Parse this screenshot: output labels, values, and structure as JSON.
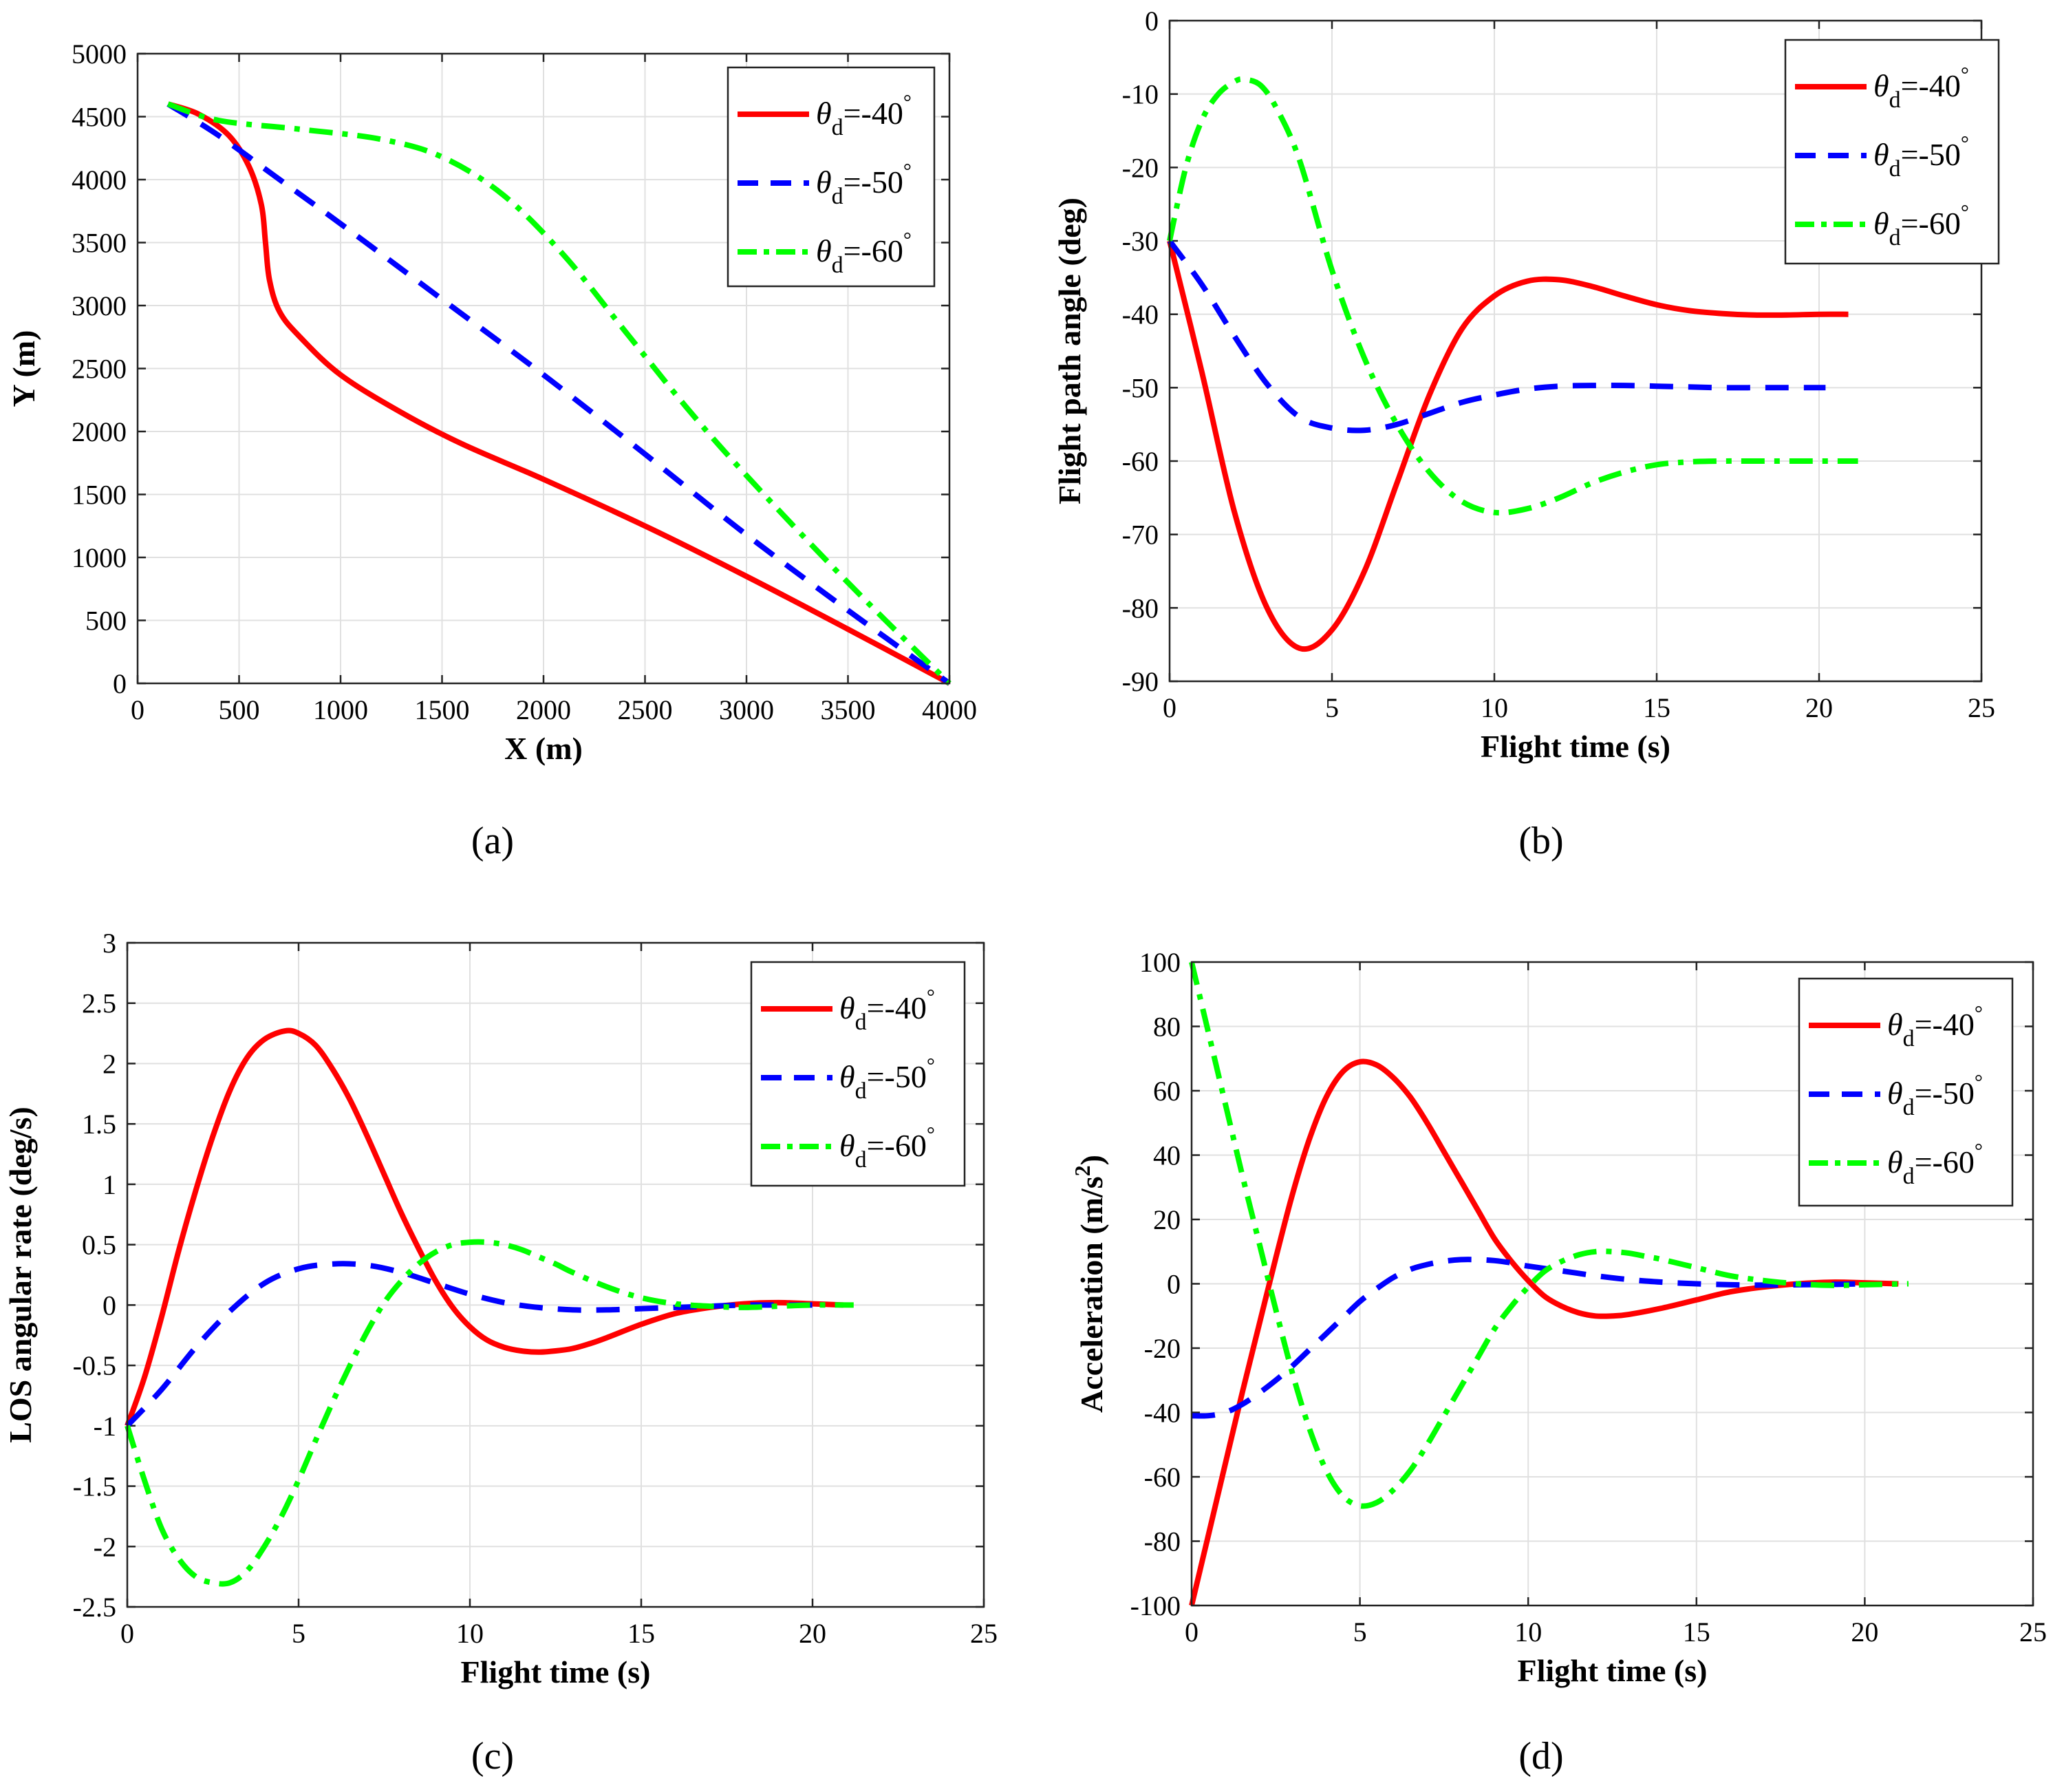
{
  "chart_data": [
    {
      "type": "line",
      "id": "a",
      "caption": "(a)",
      "xlabel": "X (m)",
      "ylabel": "Y (m)",
      "xlim": [
        0,
        4000
      ],
      "ylim": [
        0,
        5000
      ],
      "xticks": [
        0,
        500,
        1000,
        1500,
        2000,
        2500,
        3000,
        3500,
        4000
      ],
      "yticks": [
        0,
        500,
        1000,
        1500,
        2000,
        2500,
        3000,
        3500,
        4000,
        4500,
        5000
      ],
      "grid": true,
      "legend": "top-right",
      "series": [
        {
          "name": "θd=-40°",
          "color": "#ff0000",
          "style": "solid",
          "x": [
            150,
            300,
            450,
            550,
            610,
            630,
            650,
            700,
            800,
            1000,
            1300,
            1600,
            2000,
            2500,
            3000,
            3500,
            4000
          ],
          "y": [
            4600,
            4520,
            4350,
            4100,
            3800,
            3500,
            3200,
            2950,
            2750,
            2450,
            2150,
            1900,
            1620,
            1250,
            850,
            430,
            0
          ]
        },
        {
          "name": "θd=-50°",
          "color": "#0000ff",
          "style": "dashed",
          "x": [
            150,
            400,
            700,
            1000,
            1500,
            2000,
            2500,
            3000,
            3500,
            4000
          ],
          "y": [
            4600,
            4350,
            4000,
            3650,
            3050,
            2450,
            1820,
            1180,
            580,
            0
          ]
        },
        {
          "name": "θd=-60°",
          "color": "#00ff00",
          "style": "dashdot",
          "x": [
            150,
            400,
            800,
            1200,
            1500,
            1800,
            2100,
            2400,
            2700,
            3000,
            3500,
            4000
          ],
          "y": [
            4600,
            4470,
            4400,
            4320,
            4180,
            3880,
            3400,
            2800,
            2200,
            1650,
            800,
            0
          ]
        }
      ],
      "legend_entries": [
        {
          "symbol": "θ",
          "sub": "d",
          "value": "=-40",
          "sup": "°"
        },
        {
          "symbol": "θ",
          "sub": "d",
          "value": "=-50",
          "sup": "°"
        },
        {
          "symbol": "θ",
          "sub": "d",
          "value": "=-60",
          "sup": "°"
        }
      ]
    },
    {
      "type": "line",
      "id": "b",
      "caption": "(b)",
      "xlabel": "Flight time (s)",
      "ylabel": "Flight path angle (deg)",
      "xlim": [
        0,
        25
      ],
      "ylim": [
        -90,
        0
      ],
      "xticks": [
        0,
        5,
        10,
        15,
        20,
        25
      ],
      "yticks": [
        -90,
        -80,
        -70,
        -60,
        -50,
        -40,
        -30,
        -20,
        -10,
        0
      ],
      "grid": true,
      "legend": "top-right",
      "series": [
        {
          "name": "θd=-40°",
          "color": "#ff0000",
          "style": "solid",
          "x": [
            0,
            1,
            2,
            3,
            4,
            5,
            6,
            7,
            8,
            9,
            10,
            11,
            12,
            13,
            14,
            15,
            16,
            17,
            18,
            19,
            20,
            20.9
          ],
          "y": [
            -30,
            -48,
            -67,
            -80,
            -85.5,
            -83,
            -75,
            -63,
            -51,
            -42,
            -37.5,
            -35.5,
            -35.3,
            -36.2,
            -37.5,
            -38.7,
            -39.5,
            -39.9,
            -40.1,
            -40.1,
            -40,
            -40
          ]
        },
        {
          "name": "θd=-50°",
          "color": "#0000ff",
          "style": "dashed",
          "x": [
            0,
            1,
            2,
            3,
            4,
            5,
            6,
            7,
            8,
            9,
            10,
            11,
            12,
            13,
            14,
            15,
            16,
            17,
            18,
            19,
            20.2
          ],
          "y": [
            -30,
            -36,
            -43,
            -49.5,
            -54,
            -55.5,
            -55.8,
            -55,
            -53.5,
            -52,
            -51,
            -50.2,
            -49.8,
            -49.7,
            -49.7,
            -49.8,
            -49.9,
            -50,
            -50,
            -50,
            -50
          ]
        },
        {
          "name": "θd=-60°",
          "color": "#00ff00",
          "style": "dashdot",
          "x": [
            0,
            0.5,
            1,
            1.5,
            2,
            2.3,
            2.8,
            3.3,
            4,
            5,
            6,
            7,
            8,
            9,
            10,
            11,
            12,
            13,
            14,
            15,
            16,
            17,
            18,
            19,
            20,
            21.2
          ],
          "y": [
            -30,
            -20,
            -13.5,
            -10,
            -8.3,
            -8,
            -8.8,
            -12,
            -19,
            -34,
            -46,
            -55,
            -61.5,
            -65.5,
            -67,
            -66.5,
            -65,
            -63,
            -61.5,
            -60.5,
            -60.1,
            -60,
            -60,
            -60,
            -60,
            -60
          ]
        }
      ],
      "legend_entries": [
        {
          "symbol": "θ",
          "sub": "d",
          "value": "=-40",
          "sup": "°"
        },
        {
          "symbol": "θ",
          "sub": "d",
          "value": "=-50",
          "sup": "°"
        },
        {
          "symbol": "θ",
          "sub": "d",
          "value": "=-60",
          "sup": "°"
        }
      ]
    },
    {
      "type": "line",
      "id": "c",
      "caption": "(c)",
      "xlabel": "Flight time (s)",
      "ylabel": "LOS angular rate (deg/s)",
      "xlim": [
        0,
        25
      ],
      "ylim": [
        -2.5,
        3
      ],
      "xticks": [
        0,
        5,
        10,
        15,
        20,
        25
      ],
      "yticks": [
        -2.5,
        -2,
        -1.5,
        -1,
        -0.5,
        0,
        0.5,
        1,
        1.5,
        2,
        2.5,
        3
      ],
      "yticklabels": [
        "-2.5",
        "-2",
        "-1.5",
        "-1",
        "-0.5",
        "0",
        "0.5",
        "1",
        "1.5",
        "2",
        "2.5",
        "3"
      ],
      "grid": true,
      "legend": "top-right",
      "series": [
        {
          "name": "θd=-40°",
          "color": "#ff0000",
          "style": "solid",
          "x": [
            0,
            0.5,
            1,
            1.5,
            2,
            2.5,
            3,
            3.5,
            4,
            4.6,
            5,
            5.5,
            6,
            6.5,
            7,
            7.5,
            8,
            8.5,
            9,
            9.5,
            10,
            10.5,
            11,
            11.5,
            12,
            12.5,
            13,
            13.5,
            14,
            15,
            16,
            17,
            18,
            19,
            20,
            20.9
          ],
          "y": [
            -1,
            -0.6,
            -0.1,
            0.45,
            0.95,
            1.4,
            1.78,
            2.05,
            2.2,
            2.27,
            2.25,
            2.15,
            1.95,
            1.7,
            1.4,
            1.08,
            0.76,
            0.47,
            0.2,
            -0.02,
            -0.18,
            -0.29,
            -0.35,
            -0.38,
            -0.39,
            -0.38,
            -0.36,
            -0.32,
            -0.27,
            -0.16,
            -0.07,
            -0.02,
            0.01,
            0.02,
            0.01,
            0
          ]
        },
        {
          "name": "θd=-50°",
          "color": "#0000ff",
          "style": "dashed",
          "x": [
            0,
            1,
            2,
            3,
            4,
            5,
            6,
            7,
            8,
            9,
            10,
            11,
            12,
            13,
            14,
            15,
            16,
            17,
            18,
            19,
            20
          ],
          "y": [
            -1,
            -0.7,
            -0.35,
            -0.05,
            0.18,
            0.3,
            0.34,
            0.33,
            0.27,
            0.18,
            0.09,
            0.02,
            -0.02,
            -0.04,
            -0.04,
            -0.03,
            -0.02,
            -0.01,
            0,
            0,
            0
          ]
        },
        {
          "name": "θd=-60°",
          "color": "#00ff00",
          "style": "dashdot",
          "x": [
            0,
            0.5,
            1,
            1.5,
            2,
            2.5,
            3,
            3.5,
            4,
            4.5,
            5,
            5.5,
            6,
            6.5,
            7,
            7.5,
            8,
            8.5,
            9,
            9.5,
            10,
            10.5,
            11,
            11.5,
            12,
            12.5,
            13,
            14,
            15,
            16,
            17,
            18,
            19,
            20,
            21.2
          ],
          "y": [
            -1,
            -1.45,
            -1.85,
            -2.1,
            -2.25,
            -2.3,
            -2.3,
            -2.2,
            -2.0,
            -1.75,
            -1.45,
            -1.12,
            -0.8,
            -0.5,
            -0.22,
            0.02,
            0.2,
            0.34,
            0.44,
            0.5,
            0.52,
            0.52,
            0.5,
            0.46,
            0.4,
            0.34,
            0.27,
            0.15,
            0.06,
            0.01,
            -0.01,
            -0.02,
            -0.01,
            0,
            0
          ]
        }
      ],
      "legend_entries": [
        {
          "symbol": "θ",
          "sub": "d",
          "value": "=-40",
          "sup": "°"
        },
        {
          "symbol": "θ",
          "sub": "d",
          "value": "=-50",
          "sup": "°"
        },
        {
          "symbol": "θ",
          "sub": "d",
          "value": "=-60",
          "sup": "°"
        }
      ]
    },
    {
      "type": "line",
      "id": "d",
      "caption": "(d)",
      "xlabel": "Flight time (s)",
      "ylabel": "Acceleration (m/s",
      "ylabel_sup": "2",
      "ylabel_end": ")",
      "xlim": [
        0,
        25
      ],
      "ylim": [
        -100,
        100
      ],
      "xticks": [
        0,
        5,
        10,
        15,
        20,
        25
      ],
      "yticks": [
        -100,
        -80,
        -60,
        -40,
        -20,
        0,
        20,
        40,
        60,
        80,
        100
      ],
      "grid": true,
      "legend": "top-right",
      "series": [
        {
          "name": "θd=-40°",
          "color": "#ff0000",
          "style": "solid",
          "x": [
            0,
            0.5,
            1,
            1.5,
            2,
            2.5,
            3,
            3.5,
            4,
            4.5,
            5,
            5.5,
            6,
            6.5,
            7,
            7.5,
            8,
            8.5,
            9,
            9.5,
            10,
            10.5,
            11,
            11.5,
            12,
            12.5,
            13,
            14,
            15,
            16,
            17,
            18,
            19,
            20,
            21
          ],
          "y": [
            -100,
            -78,
            -56,
            -34,
            -13,
            8,
            28,
            45,
            58,
            66,
            69,
            68,
            64,
            58,
            50,
            41,
            32,
            23,
            14,
            7,
            1,
            -4,
            -7,
            -9,
            -10,
            -10,
            -9.5,
            -7.5,
            -5,
            -2.5,
            -1,
            0,
            0.5,
            0.3,
            0
          ]
        },
        {
          "name": "θd=-50°",
          "color": "#0000ff",
          "style": "dashed",
          "x": [
            0,
            0.5,
            1,
            1.5,
            2,
            2.5,
            3,
            3.5,
            4,
            4.5,
            5,
            5.5,
            6,
            6.5,
            7,
            7.5,
            8,
            8.5,
            9,
            9.5,
            10,
            11,
            12,
            13,
            14,
            15,
            16,
            17,
            18,
            19,
            20
          ],
          "y": [
            -41,
            -41,
            -40,
            -37.5,
            -34,
            -30,
            -25.5,
            -20.5,
            -15.5,
            -10.5,
            -5.5,
            -1.5,
            2,
            4.5,
            6,
            7,
            7.5,
            7.5,
            7.2,
            6.5,
            5.5,
            4,
            2.5,
            1.3,
            0.5,
            0,
            -0.3,
            -0.4,
            -0.3,
            -0.2,
            0
          ]
        },
        {
          "name": "θd=-60°",
          "color": "#00ff00",
          "style": "dashdot",
          "x": [
            0,
            0.5,
            1,
            1.5,
            2,
            2.5,
            3,
            3.5,
            4,
            4.5,
            5,
            5.5,
            6,
            6.5,
            7,
            7.5,
            8,
            8.5,
            9,
            9.5,
            10,
            10.5,
            11,
            11.5,
            12,
            12.5,
            13,
            13.5,
            14,
            15,
            16,
            17,
            18,
            19,
            20,
            21.3
          ],
          "y": [
            100,
            78,
            56,
            34,
            13,
            -8,
            -28,
            -45,
            -58,
            -66,
            -69,
            -68,
            -64,
            -58,
            -50,
            -41,
            -32,
            -23,
            -14,
            -7,
            -1,
            4,
            7,
            9,
            10,
            10,
            9.5,
            8.5,
            7.5,
            5,
            2.5,
            1,
            0,
            -0.5,
            -0.3,
            0
          ]
        }
      ],
      "legend_entries": [
        {
          "symbol": "θ",
          "sub": "d",
          "value": "=-40",
          "sup": "°"
        },
        {
          "symbol": "θ",
          "sub": "d",
          "value": "=-50",
          "sup": "°"
        },
        {
          "symbol": "θ",
          "sub": "d",
          "value": "=-60",
          "sup": "°"
        }
      ]
    }
  ]
}
